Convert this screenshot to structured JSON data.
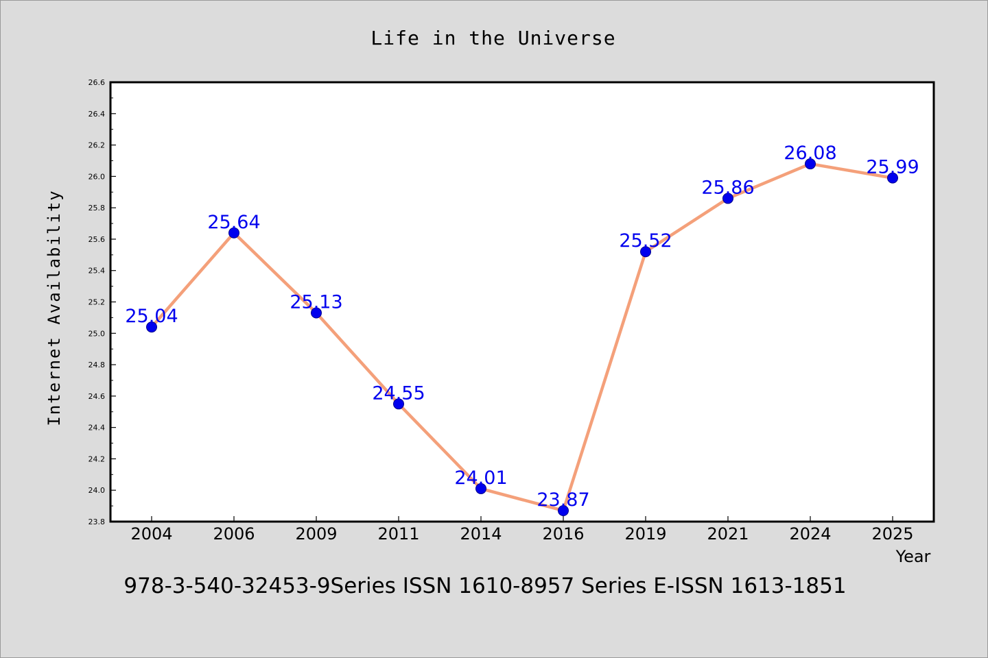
{
  "chart_data": {
    "type": "line",
    "title": "Life in the Universe",
    "xlabel": "Year",
    "ylabel": "Internet Availability",
    "categories": [
      "2004",
      "2006",
      "2009",
      "2011",
      "2014",
      "2016",
      "2019",
      "2021",
      "2024",
      "2025"
    ],
    "series": [
      {
        "values": [
          25.04,
          25.64,
          25.13,
          24.55,
          24.01,
          23.87,
          25.52,
          25.86,
          26.08,
          25.99
        ],
        "data_labels": [
          "25.04",
          "25.64",
          "25.13",
          "24.55",
          "24.01",
          "23.87",
          "25.52",
          "25.86",
          "26.08",
          "25.99"
        ],
        "line_color": "#f4a07a",
        "marker_color": "#0000ee",
        "label_color": "#0000ee"
      }
    ],
    "ylim": [
      23.8,
      26.6
    ],
    "yticks": [
      "23.8",
      "24.0",
      "24.2",
      "24.4",
      "24.6",
      "24.8",
      "25.0",
      "25.2",
      "25.4",
      "25.6",
      "25.8",
      "26.0",
      "26.2",
      "26.4",
      "26.6"
    ],
    "grid": false,
    "legend": "none",
    "footer": "978-3-540-32453-9Series ISSN 1610-8957 Series E-ISSN 1613-1851",
    "colors": {
      "background": "#dcdcdc",
      "plot_background": "#ffffff",
      "axis": "#000000"
    }
  }
}
